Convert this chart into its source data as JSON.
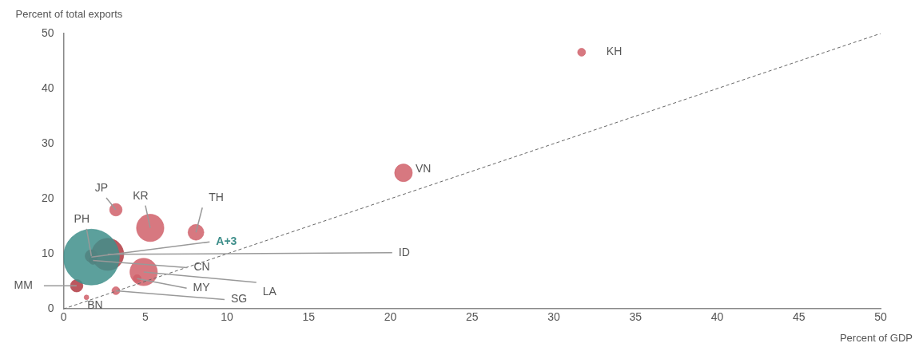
{
  "chart_data": {
    "type": "bubble",
    "xlabel": "Percent of GDP",
    "ylabel": "Percent of total exports",
    "xlim": [
      0,
      50
    ],
    "xticks": [
      0,
      5,
      10,
      15,
      20,
      25,
      30,
      35,
      40,
      45,
      50
    ],
    "ylim": [
      0,
      50
    ],
    "yticks": [
      0,
      10,
      20,
      30,
      40,
      50
    ],
    "grid": false,
    "legend": false,
    "series": [
      {
        "name": "A+3",
        "color": "#3f8f8b",
        "x": [
          1.7
        ],
        "values": [
          9.4
        ],
        "sizes": [
          1
        ]
      },
      {
        "name": "KH",
        "color": "#d0606a",
        "x": [
          31.7
        ],
        "values": [
          46.6
        ],
        "sizes": [
          0.02
        ]
      },
      {
        "name": "VN",
        "color": "#d0606a",
        "x": [
          20.8
        ],
        "values": [
          24.7
        ],
        "sizes": [
          0.1
        ]
      },
      {
        "name": "JP",
        "color": "#d0606a",
        "x": [
          3.2
        ],
        "values": [
          18.0
        ],
        "sizes": [
          0.05
        ]
      },
      {
        "name": "KR",
        "color": "#d0606a",
        "x": [
          5.3
        ],
        "values": [
          14.7
        ],
        "sizes": [
          0.24
        ]
      },
      {
        "name": "TH",
        "color": "#d0606a",
        "x": [
          8.1
        ],
        "values": [
          13.9
        ],
        "sizes": [
          0.08
        ]
      },
      {
        "name": "ID",
        "color": "#b03a42",
        "x": [
          2.7
        ],
        "values": [
          9.9
        ],
        "sizes": [
          0.33
        ]
      },
      {
        "name": "PH",
        "color": "#b03a42",
        "x": [
          1.7
        ],
        "values": [
          9.6
        ],
        "sizes": [
          0.05
        ]
      },
      {
        "name": "CN",
        "color": "#b03a42",
        "x": [
          1.8
        ],
        "values": [
          8.8
        ],
        "sizes": [
          0.02
        ]
      },
      {
        "name": "LA",
        "color": "#d0606a",
        "x": [
          4.9
        ],
        "values": [
          6.7
        ],
        "sizes": [
          0.24
        ]
      },
      {
        "name": "MY",
        "color": "#d0606a",
        "x": [
          4.5
        ],
        "values": [
          5.5
        ],
        "sizes": [
          0.02
        ]
      },
      {
        "name": "MM",
        "color": "#b03a42",
        "x": [
          0.8
        ],
        "values": [
          4.2
        ],
        "sizes": [
          0.05
        ]
      },
      {
        "name": "SG",
        "color": "#d0606a",
        "x": [
          3.2
        ],
        "values": [
          3.3
        ],
        "sizes": [
          0.02
        ]
      },
      {
        "name": "BN",
        "color": "#d0606a",
        "x": [
          1.4
        ],
        "values": [
          2.1
        ],
        "sizes": [
          0.007
        ]
      },
      {
        "type": "line",
        "color": "#666666",
        "line_style": "dashed",
        "marker": "none",
        "x": [
          0,
          50
        ],
        "values": [
          0,
          50
        ]
      }
    ]
  }
}
